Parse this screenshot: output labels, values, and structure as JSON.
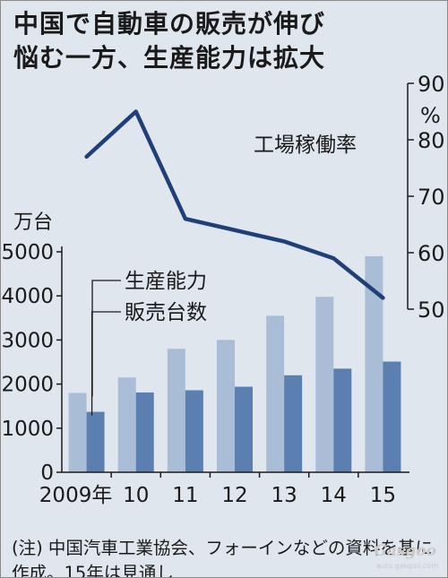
{
  "header": {
    "title_line1": "中国で自動車の販売が伸び",
    "title_line2": "悩む一方、生産能力は拡大"
  },
  "footer": {
    "note": "(注) 中国汽車工業協会、フォーインなどの資料を基に作成。15年は見通し"
  },
  "watermark": {
    "logo_text": "Gasgoo",
    "site_text": "auto.gasgoo.com"
  },
  "chart_data": {
    "type": "bar+line",
    "categories": [
      "2009年",
      "10",
      "11",
      "12",
      "13",
      "14",
      "15"
    ],
    "left_axis": {
      "unit_label": "万台",
      "ticks": [
        "0",
        "1000",
        "2000",
        "3000",
        "4000",
        "5000"
      ],
      "range": [
        0,
        5000
      ]
    },
    "right_axis": {
      "unit_label": "%",
      "ticks": [
        "50",
        "60",
        "70",
        "80",
        "90"
      ],
      "range": [
        50,
        90
      ]
    },
    "series": [
      {
        "name": "生産能力",
        "values": [
          1800,
          2150,
          2800,
          3000,
          3550,
          3980,
          4900
        ],
        "color": "#a9bdd7",
        "axis": "left"
      },
      {
        "name": "販売台数",
        "values": [
          1370,
          1810,
          1860,
          1940,
          2200,
          2350,
          2510
        ],
        "color": "#5b7fb0",
        "axis": "left"
      },
      {
        "name": "工場稼働率",
        "values": [
          77,
          85,
          66,
          64,
          62,
          59,
          52
        ],
        "color": "#1f3f78",
        "axis": "right"
      }
    ],
    "grid": false,
    "legend": "inside-left"
  }
}
